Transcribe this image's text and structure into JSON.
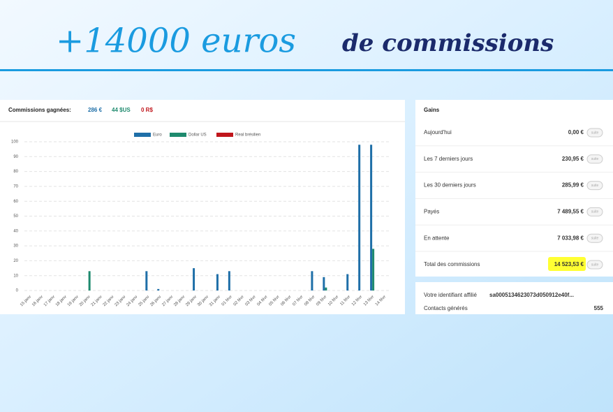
{
  "headline": {
    "accent": "+14000 euros",
    "rest": "de commissions"
  },
  "chart_data": {
    "type": "bar",
    "title": "Commissions gagnées:",
    "totals": [
      "286 €",
      "44 $US",
      "0 R$"
    ],
    "categories": [
      "15 janv",
      "16 janv",
      "17 janv",
      "18 janv",
      "19 janv",
      "20 janv",
      "21 janv",
      "22 janv",
      "23 janv",
      "24 janv",
      "25 janv",
      "26 janv",
      "27 janv",
      "28 janv",
      "29 janv",
      "30 janv",
      "31 janv",
      "01 févr",
      "02 févr",
      "03 févr",
      "04 févr",
      "05 févr",
      "06 févr",
      "07 févr",
      "08 févr",
      "09 févr",
      "10 févr",
      "11 févr",
      "12 févr",
      "13 févr",
      "14 févr"
    ],
    "series": [
      {
        "name": "Euro",
        "color": "#1f6fa8",
        "values": [
          0,
          0,
          0,
          0,
          0,
          0,
          0,
          0,
          0,
          0,
          13,
          1,
          0,
          0,
          15,
          0,
          11,
          13,
          0,
          0,
          0,
          0,
          0,
          0,
          13,
          9,
          0,
          11,
          98,
          98,
          0
        ]
      },
      {
        "name": "Dollar US",
        "color": "#1e8a6e",
        "values": [
          0,
          0,
          0,
          0,
          0,
          13,
          0,
          0,
          0,
          0,
          0,
          0,
          0,
          0,
          0,
          0,
          0,
          0,
          0,
          0,
          0,
          0,
          0,
          0,
          0,
          2,
          0,
          0,
          0,
          28,
          0
        ]
      },
      {
        "name": "Real brésilien",
        "color": "#c0161c",
        "values": [
          0,
          0,
          0,
          0,
          0,
          0,
          0,
          0,
          0,
          0,
          0,
          0,
          0,
          0,
          0,
          0,
          0,
          0,
          0,
          0,
          0,
          0,
          0,
          0,
          0,
          0,
          0,
          0,
          0,
          0,
          0
        ]
      }
    ],
    "ylim": [
      0,
      100
    ],
    "yticks": [
      0,
      10,
      20,
      30,
      40,
      50,
      60,
      70,
      80,
      90,
      100
    ],
    "grid": true
  },
  "gains": {
    "title": "Gains",
    "button": "suite",
    "rows": [
      [
        "Aujourd'hui",
        "0,00 €"
      ],
      [
        "Les 7 derniers jours",
        "230,95 €"
      ],
      [
        "Les 30 derniers jours",
        "285,99 €"
      ],
      [
        "Payés",
        "7 489,55 €"
      ],
      [
        "En attente",
        "7 033,98 €"
      ],
      [
        "Total des commissions",
        "14 523,53 €"
      ]
    ],
    "affiliate_label": "Votre identifiant affilié",
    "affiliate_id": "sa0005134623073d050912e40f...",
    "contacts_label": "Contacts générés",
    "contacts_value": "555"
  }
}
